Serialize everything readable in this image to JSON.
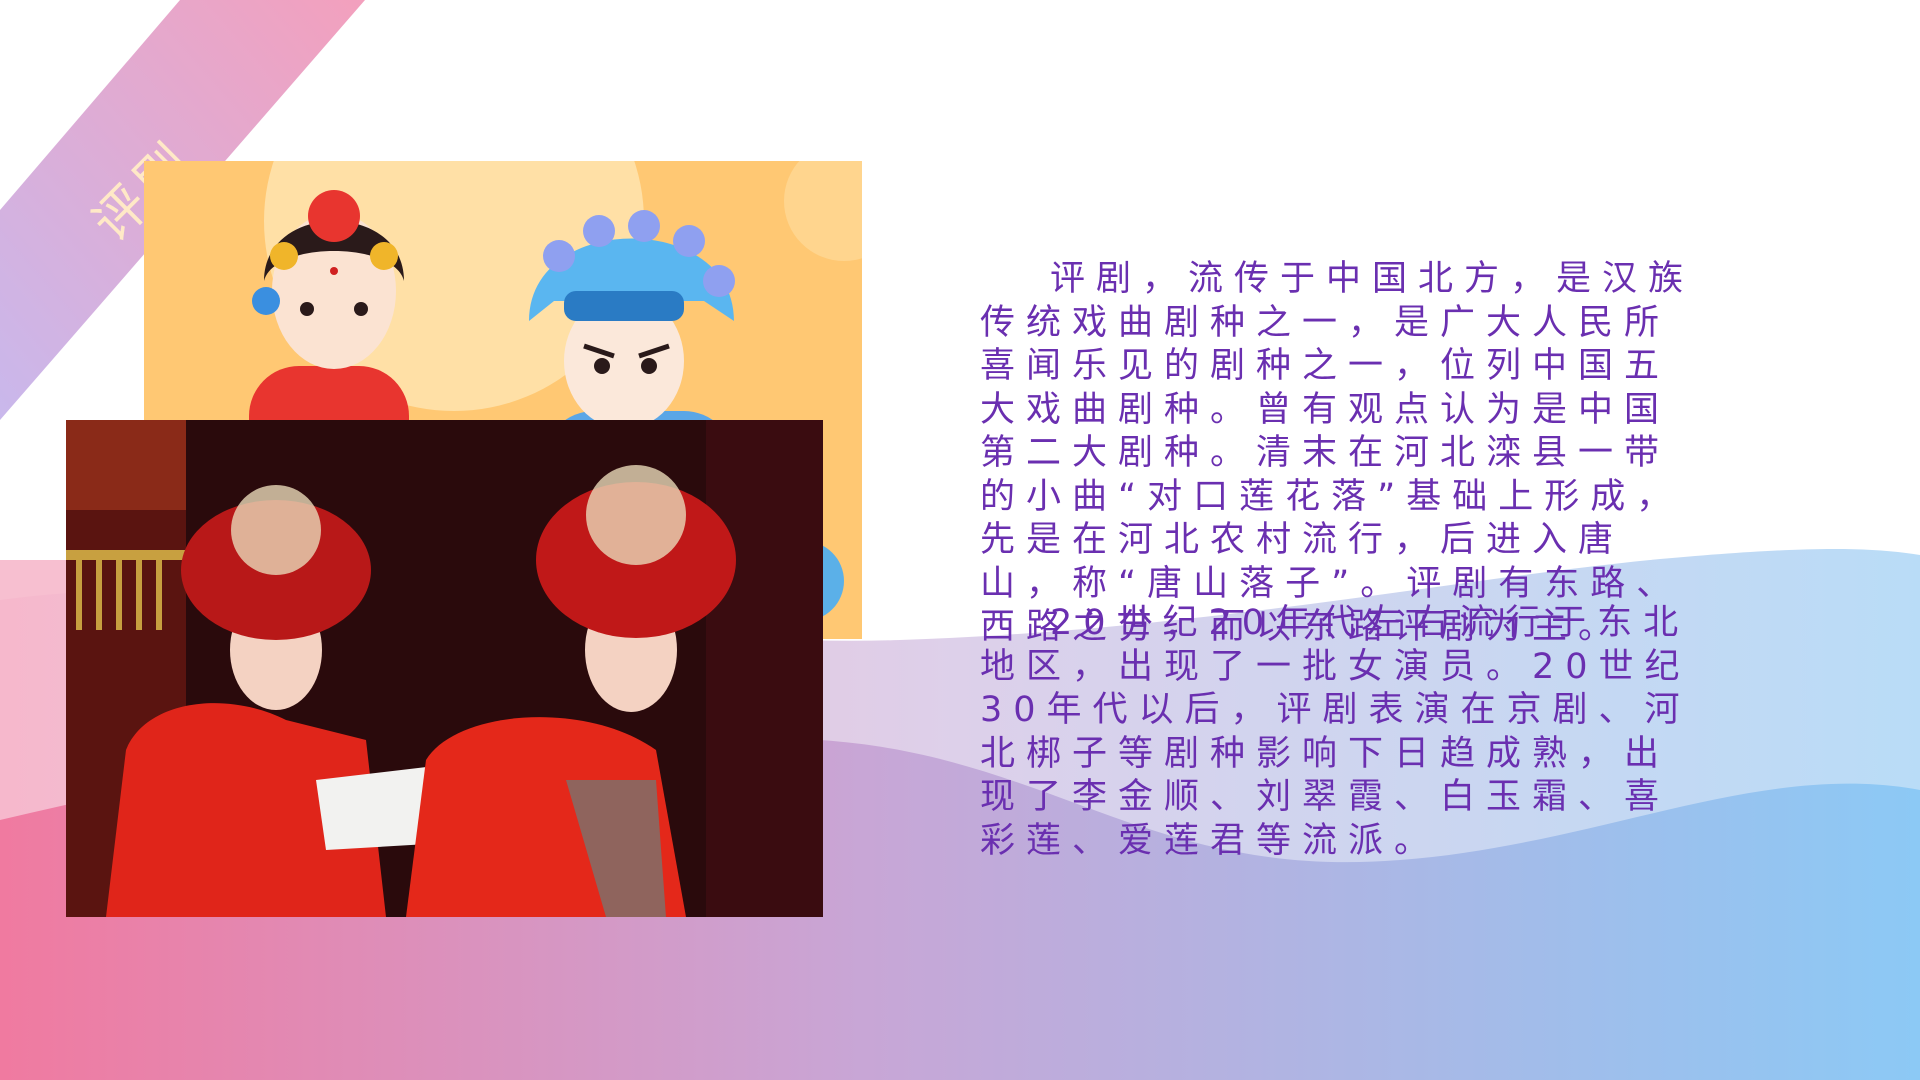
{
  "slide": {
    "title": "评剧",
    "paragraphs": [
      "评剧，流传于中国北方，是汉族传统戏曲剧种之一，是广大人民所喜闻乐见的剧种之一，位列中国五大戏曲剧种。曾有观点认为是中国第二大剧种。清末在河北滦县一带的小曲“对口莲花落”基础上形成，先是在河北农村流行，后进入唐山，称“唐山落子”。评剧有东路、西路之分，而以东路评剧为主。",
      "20世纪20年代左右流行于东北地区，出现了一批女演员。20世纪30年代以后，评剧表演在京剧、河北梆子等剧种影响下日趋成熟，出现了李金顺、刘翠霞、白玉霜、喜彩莲、爱莲君等流派。"
    ]
  },
  "colors": {
    "text": "#6a2fb0",
    "ribbon_start": "#f3a0bd",
    "ribbon_end": "#c9b8ec",
    "wave_pink": "#f07aa0",
    "wave_blue": "#8cc9f5",
    "title_text": "#ffe9c7"
  }
}
